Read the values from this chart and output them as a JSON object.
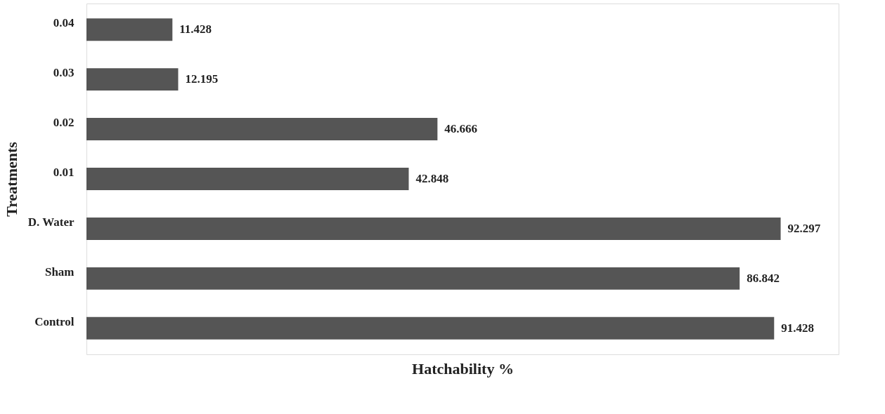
{
  "chart_data": {
    "type": "bar",
    "orientation": "horizontal",
    "xlabel": "Hatchability %",
    "ylabel": "Treatments",
    "categories": [
      "0.04",
      "0.03",
      "0.02",
      "0.01",
      "D. Water",
      "Sham",
      "Control"
    ],
    "values": [
      11.428,
      12.195,
      46.666,
      42.848,
      92.297,
      86.842,
      91.428
    ],
    "color": "#555555",
    "xlim": [
      0,
      100
    ],
    "data_labels": true,
    "grid": false
  }
}
